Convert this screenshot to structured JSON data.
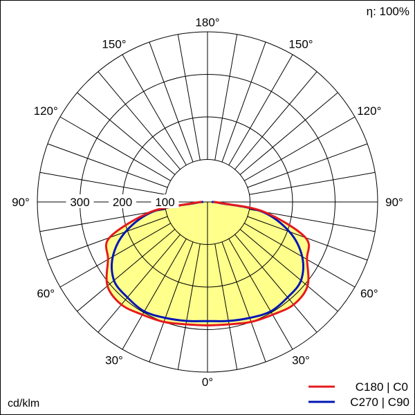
{
  "chart_data": {
    "type": "polar",
    "efficiency": "η: 100%",
    "unit": "cd/klm",
    "radial_ticks": [
      100,
      200,
      300
    ],
    "radial_tick_labels": [
      "100",
      "200",
      "300"
    ],
    "radial_max": 400,
    "angle_labels": [
      {
        "angle": 180,
        "text": "180°",
        "side": "top"
      },
      {
        "angle": 150,
        "text": "150°",
        "side": "left"
      },
      {
        "angle": 150,
        "text": "150°",
        "side": "right"
      },
      {
        "angle": 120,
        "text": "120°",
        "side": "left"
      },
      {
        "angle": 120,
        "text": "120°",
        "side": "right"
      },
      {
        "angle": 90,
        "text": "90°",
        "side": "left"
      },
      {
        "angle": 90,
        "text": "90°",
        "side": "right"
      },
      {
        "angle": 60,
        "text": "60°",
        "side": "left"
      },
      {
        "angle": 60,
        "text": "60°",
        "side": "right"
      },
      {
        "angle": 30,
        "text": "30°",
        "side": "left"
      },
      {
        "angle": 30,
        "text": "30°",
        "side": "right"
      },
      {
        "angle": 0,
        "text": "0°",
        "side": "bottom"
      }
    ],
    "angles": [
      0,
      10,
      20,
      30,
      40,
      50,
      60,
      70,
      80,
      85,
      90
    ],
    "series": [
      {
        "name": "C180 | C0",
        "color": "#e41a1c",
        "values": [
          290,
          292,
          300,
          306,
          315,
          307,
          270,
          245,
          136,
          36,
          14
        ]
      },
      {
        "name": "C270 | C90",
        "color": "#0015b5",
        "values": [
          280,
          284,
          290,
          297,
          293,
          287,
          257,
          205,
          130,
          30,
          10
        ]
      }
    ],
    "fill_color": "#ffff8c",
    "legend": "bottom-right"
  }
}
